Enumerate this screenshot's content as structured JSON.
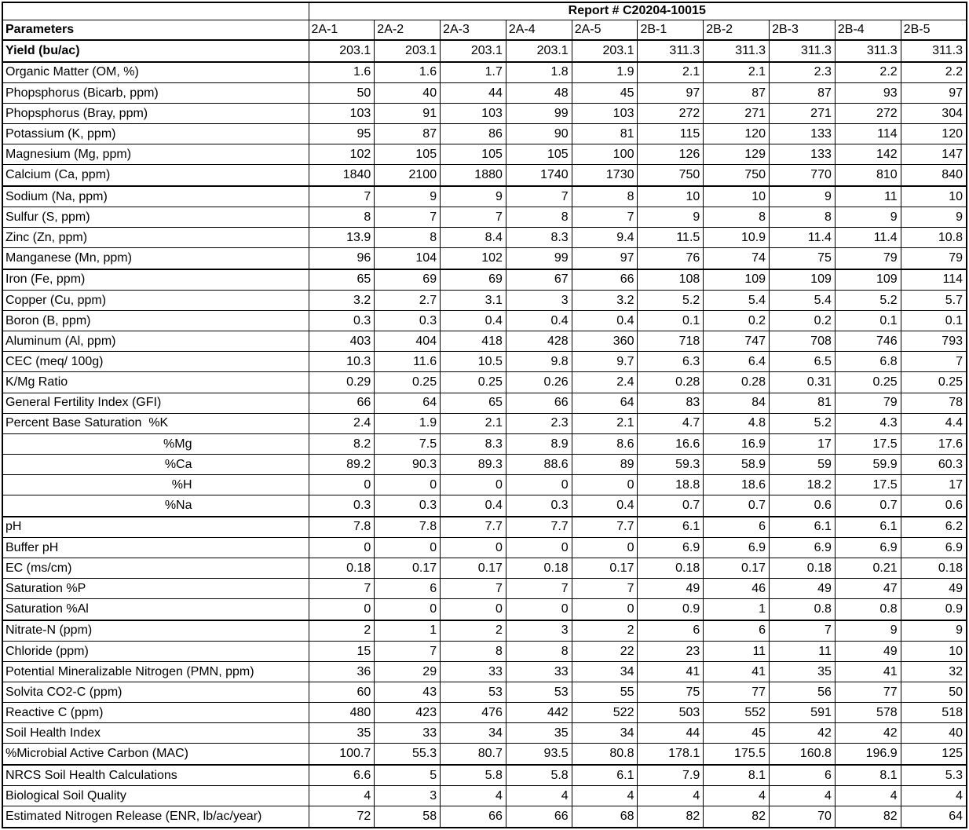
{
  "colors": {
    "border": "#000000",
    "background": "#ffffff",
    "text": "#000000"
  },
  "report": {
    "title": "Report # C20204-10015"
  },
  "table": {
    "params_header": "Parameters",
    "columns": [
      "2A-1",
      "2A-2",
      "2A-3",
      "2A-4",
      "2A-5",
      "2B-1",
      "2B-2",
      "2B-3",
      "2B-4",
      "2B-5"
    ],
    "rows": [
      {
        "label": "Yield (bu/ac)",
        "bold": true,
        "values": [
          "203.1",
          "203.1",
          "203.1",
          "203.1",
          "203.1",
          "311.3",
          "311.3",
          "311.3",
          "311.3",
          "311.3"
        ]
      },
      {
        "label": "Organic Matter (OM, %)",
        "values": [
          "1.6",
          "1.6",
          "1.7",
          "1.8",
          "1.9",
          "2.1",
          "2.1",
          "2.3",
          "2.2",
          "2.2"
        ]
      },
      {
        "label": "Phopsphorus (Bicarb, ppm)",
        "values": [
          "50",
          "40",
          "44",
          "48",
          "45",
          "97",
          "87",
          "87",
          "93",
          "97"
        ]
      },
      {
        "label": "Phopsphorus (Bray, ppm)",
        "values": [
          "103",
          "91",
          "103",
          "99",
          "103",
          "272",
          "271",
          "271",
          "272",
          "304"
        ]
      },
      {
        "label": "Potassium (K, ppm)",
        "values": [
          "95",
          "87",
          "86",
          "90",
          "81",
          "115",
          "120",
          "133",
          "114",
          "120"
        ]
      },
      {
        "label": "Magnesium (Mg, ppm)",
        "values": [
          "102",
          "105",
          "105",
          "105",
          "100",
          "126",
          "129",
          "133",
          "142",
          "147"
        ]
      },
      {
        "label": "Calcium (Ca, ppm)",
        "values": [
          "1840",
          "2100",
          "1880",
          "1740",
          "1730",
          "750",
          "750",
          "770",
          "810",
          "840"
        ]
      },
      {
        "label": "Sodium (Na, ppm)",
        "values": [
          "7",
          "9",
          "9",
          "7",
          "8",
          "10",
          "10",
          "9",
          "11",
          "10"
        ]
      },
      {
        "label": "Sulfur (S, ppm)",
        "values": [
          "8",
          "7",
          "7",
          "8",
          "7",
          "9",
          "8",
          "8",
          "9",
          "9"
        ]
      },
      {
        "label": "Zinc (Zn, ppm)",
        "values": [
          "13.9",
          "8",
          "8.4",
          "8.3",
          "9.4",
          "11.5",
          "10.9",
          "11.4",
          "11.4",
          "10.8"
        ]
      },
      {
        "label": "Manganese (Mn, ppm)",
        "values": [
          "96",
          "104",
          "102",
          "99",
          "97",
          "76",
          "74",
          "75",
          "79",
          "79"
        ]
      },
      {
        "label": "Iron (Fe, ppm)",
        "values": [
          "65",
          "69",
          "69",
          "67",
          "66",
          "108",
          "109",
          "109",
          "109",
          "114"
        ]
      },
      {
        "label": "Copper (Cu, ppm)",
        "values": [
          "3.2",
          "2.7",
          "3.1",
          "3",
          "3.2",
          "5.2",
          "5.4",
          "5.4",
          "5.2",
          "5.7"
        ]
      },
      {
        "label": "Boron (B, ppm)",
        "values": [
          "0.3",
          "0.3",
          "0.4",
          "0.4",
          "0.4",
          "0.1",
          "0.2",
          "0.2",
          "0.1",
          "0.1"
        ]
      },
      {
        "label": "Aluminum (Al, ppm)",
        "values": [
          "403",
          "404",
          "418",
          "428",
          "360",
          "718",
          "747",
          "708",
          "746",
          "793"
        ]
      },
      {
        "label": "CEC (meq/ 100g)",
        "values": [
          "10.3",
          "11.6",
          "10.5",
          "9.8",
          "9.7",
          "6.3",
          "6.4",
          "6.5",
          "6.8",
          "7"
        ]
      },
      {
        "label": "K/Mg Ratio",
        "values": [
          "0.29",
          "0.25",
          "0.25",
          "0.26",
          "2.4",
          "0.28",
          "0.28",
          "0.31",
          "0.25",
          "0.25"
        ]
      },
      {
        "label": "General Fertility Index (GFI)",
        "values": [
          "66",
          "64",
          "65",
          "66",
          "64",
          "83",
          "84",
          "81",
          "79",
          "78"
        ]
      },
      {
        "label": "Percent Base Saturation  %K",
        "values": [
          "2.4",
          "1.9",
          "2.1",
          "2.3",
          "2.1",
          "4.7",
          "4.8",
          "5.2",
          "4.3",
          "4.4"
        ]
      },
      {
        "label": "%Mg",
        "indent": true,
        "values": [
          "8.2",
          "7.5",
          "8.3",
          "8.9",
          "8.6",
          "16.6",
          "16.9",
          "17",
          "17.5",
          "17.6"
        ]
      },
      {
        "label": "%Ca",
        "indent": true,
        "values": [
          "89.2",
          "90.3",
          "89.3",
          "88.6",
          "89",
          "59.3",
          "58.9",
          "59",
          "59.9",
          "60.3"
        ]
      },
      {
        "label": "%H",
        "indent": true,
        "values": [
          "0",
          "0",
          "0",
          "0",
          "0",
          "18.8",
          "18.6",
          "18.2",
          "17.5",
          "17"
        ]
      },
      {
        "label": "%Na",
        "indent": true,
        "values": [
          "0.3",
          "0.3",
          "0.4",
          "0.3",
          "0.4",
          "0.7",
          "0.7",
          "0.6",
          "0.7",
          "0.6"
        ]
      },
      {
        "label": "pH",
        "values": [
          "7.8",
          "7.8",
          "7.7",
          "7.7",
          "7.7",
          "6.1",
          "6",
          "6.1",
          "6.1",
          "6.2"
        ]
      },
      {
        "label": "Buffer pH",
        "values": [
          "0",
          "0",
          "0",
          "0",
          "0",
          "6.9",
          "6.9",
          "6.9",
          "6.9",
          "6.9"
        ]
      },
      {
        "label": "EC (ms/cm)",
        "values": [
          "0.18",
          "0.17",
          "0.17",
          "0.18",
          "0.17",
          "0.18",
          "0.17",
          "0.18",
          "0.21",
          "0.18"
        ]
      },
      {
        "label": "Saturation %P",
        "values": [
          "7",
          "6",
          "7",
          "7",
          "7",
          "49",
          "46",
          "49",
          "47",
          "49"
        ]
      },
      {
        "label": "Saturation %Al",
        "values": [
          "0",
          "0",
          "0",
          "0",
          "0",
          "0.9",
          "1",
          "0.8",
          "0.8",
          "0.9"
        ]
      },
      {
        "label": "Nitrate-N (ppm)",
        "values": [
          "2",
          "1",
          "2",
          "3",
          "2",
          "6",
          "6",
          "7",
          "9",
          "9"
        ]
      },
      {
        "label": "Chloride (ppm)",
        "values": [
          "15",
          "7",
          "8",
          "8",
          "22",
          "23",
          "11",
          "11",
          "49",
          "10"
        ]
      },
      {
        "label": "Potential Mineralizable Nitrogen (PMN, ppm)",
        "values": [
          "36",
          "29",
          "33",
          "33",
          "34",
          "41",
          "41",
          "35",
          "41",
          "32"
        ]
      },
      {
        "label": "Solvita CO2-C (ppm)",
        "values": [
          "60",
          "43",
          "53",
          "53",
          "55",
          "75",
          "77",
          "56",
          "77",
          "50"
        ]
      },
      {
        "label": "Reactive C (ppm)",
        "values": [
          "480",
          "423",
          "476",
          "442",
          "522",
          "503",
          "552",
          "591",
          "578",
          "518"
        ]
      },
      {
        "label": "Soil Health Index",
        "values": [
          "35",
          "33",
          "34",
          "35",
          "34",
          "44",
          "45",
          "42",
          "42",
          "40"
        ]
      },
      {
        "label": "%Microbial Active Carbon (MAC)",
        "values": [
          "100.7",
          "55.3",
          "80.7",
          "93.5",
          "80.8",
          "178.1",
          "175.5",
          "160.8",
          "196.9",
          "125"
        ]
      },
      {
        "label": "NRCS Soil Health Calculations",
        "values": [
          "6.6",
          "5",
          "5.8",
          "5.8",
          "6.1",
          "7.9",
          "8.1",
          "6",
          "8.1",
          "5.3"
        ]
      },
      {
        "label": "Biological Soil Quality",
        "values": [
          "4",
          "3",
          "4",
          "4",
          "4",
          "4",
          "4",
          "4",
          "4",
          "4"
        ]
      },
      {
        "label": "Estimated Nitrogen Release (ENR, lb/ac/year)",
        "values": [
          "72",
          "58",
          "66",
          "66",
          "68",
          "82",
          "82",
          "70",
          "82",
          "64"
        ]
      }
    ]
  }
}
